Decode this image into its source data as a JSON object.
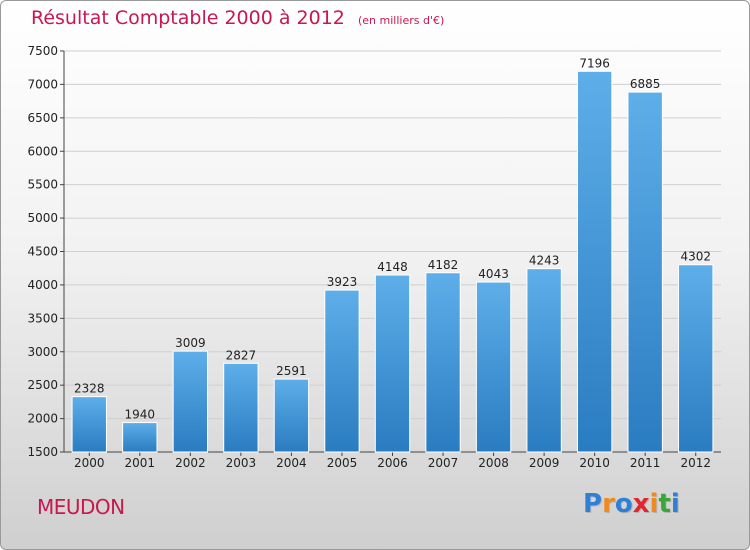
{
  "header": {
    "title": "Résultat Comptable 2000 à 2012",
    "subtitle": "(en milliers d'€)"
  },
  "footer": {
    "city": "MEUDON",
    "logo_letters": [
      {
        "char": "P",
        "color": "#2e7fd6"
      },
      {
        "char": "r",
        "color": "#f08a1c"
      },
      {
        "char": "o",
        "color": "#2e7fd6"
      },
      {
        "char": "x",
        "color": "#e0262f"
      },
      {
        "char": "i",
        "color": "#f08a1c"
      },
      {
        "char": "t",
        "color": "#3aa63a"
      },
      {
        "char": "i",
        "color": "#2e7fd6"
      }
    ]
  },
  "chart_data": {
    "type": "bar",
    "title": "Résultat Comptable 2000 à 2012",
    "subtitle": "(en milliers d'€)",
    "categories": [
      "2000",
      "2001",
      "2002",
      "2003",
      "2004",
      "2005",
      "2006",
      "2007",
      "2008",
      "2009",
      "2010",
      "2011",
      "2012"
    ],
    "values": [
      2328,
      1940,
      3009,
      2827,
      2591,
      3923,
      4148,
      4182,
      4043,
      4243,
      7196,
      6885,
      4302
    ],
    "ylim": [
      1500,
      7500
    ],
    "yticks": [
      1500,
      2000,
      2500,
      3000,
      3500,
      4000,
      4500,
      5000,
      5500,
      6000,
      6500,
      7000,
      7500
    ],
    "grid": true,
    "bar_color": "#3f93d8",
    "xlabel": "",
    "ylabel": ""
  }
}
